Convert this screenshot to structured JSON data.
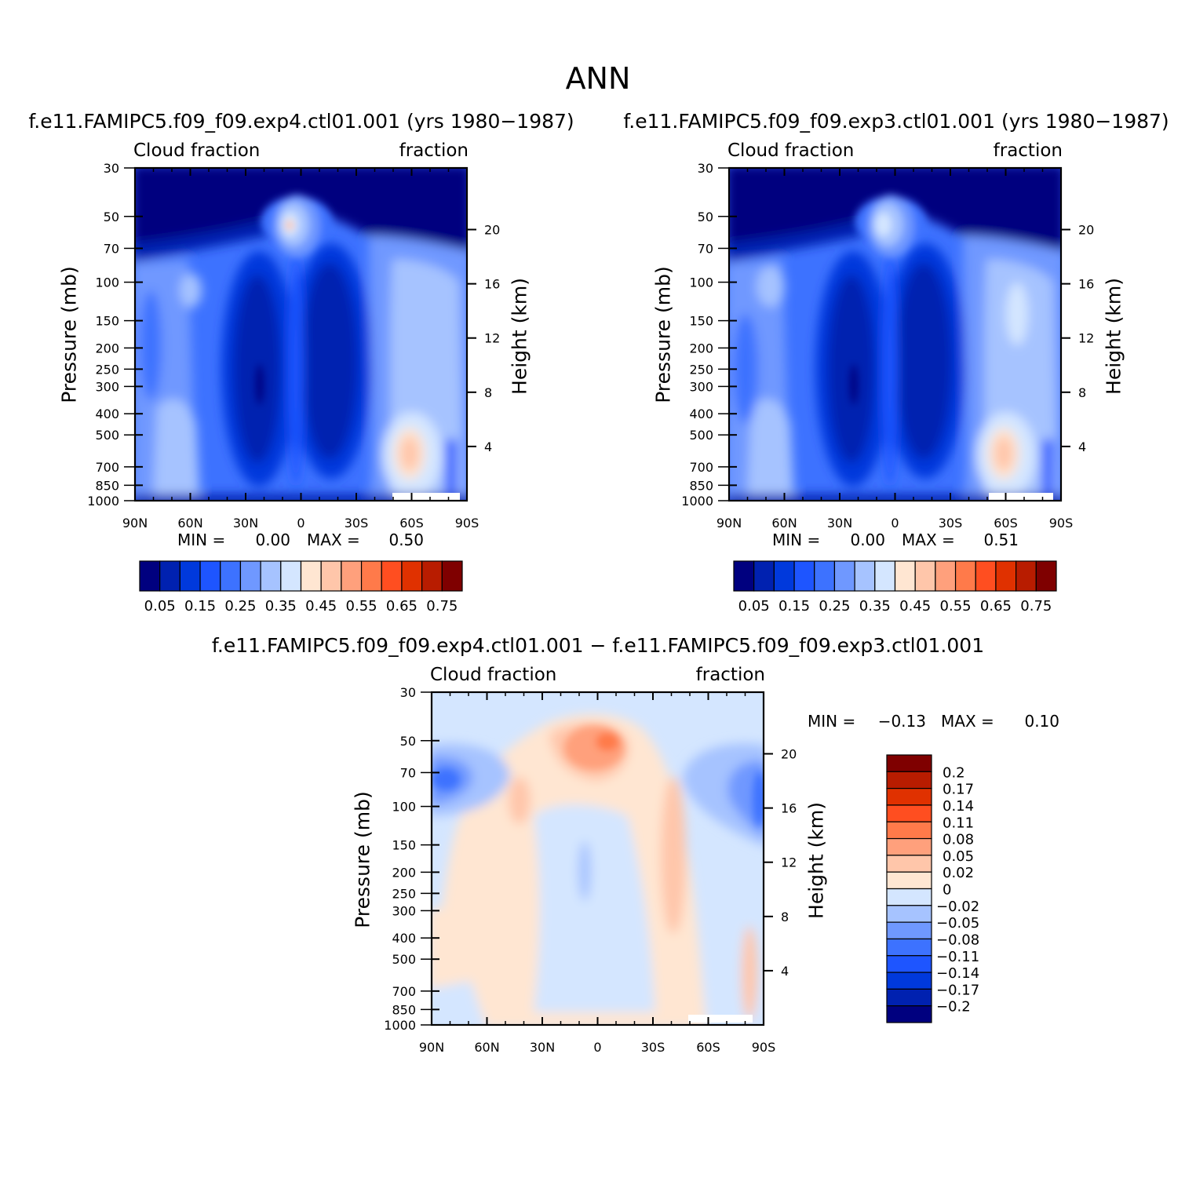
{
  "figure_title": "ANN",
  "chart_data": [
    {
      "id": "p1",
      "type": "contour",
      "title": "f.e11.FAMIPC5.f09_f09.exp4.ctl01.001 (yrs 1980−1987)",
      "left_string": "Cloud fraction",
      "right_string": "fraction",
      "ylabel": "Pressure (mb)",
      "ylabel_right": "Height (km)",
      "x_ticks": [
        "90N",
        "60N",
        "30N",
        "0",
        "30S",
        "60S",
        "90S"
      ],
      "y_ticks": [
        "30",
        "50",
        "70",
        "100",
        "150",
        "200",
        "250",
        "300",
        "400",
        "500",
        "700",
        "850",
        "1000"
      ],
      "y_ticks_right": [
        "20",
        "16",
        "12",
        "8",
        "4"
      ],
      "stats": {
        "min_label": "MIN =",
        "min": "0.00",
        "max_label": "MAX =",
        "max": "0.50"
      },
      "colorbar_labels": [
        "0.05",
        "0.15",
        "0.25",
        "0.35",
        "0.45",
        "0.55",
        "0.65",
        "0.75"
      ]
    },
    {
      "id": "p2",
      "type": "contour",
      "title": "f.e11.FAMIPC5.f09_f09.exp3.ctl01.001 (yrs 1980−1987)",
      "left_string": "Cloud fraction",
      "right_string": "fraction",
      "ylabel": "Pressure (mb)",
      "ylabel_right": "Height (km)",
      "x_ticks": [
        "90N",
        "60N",
        "30N",
        "0",
        "30S",
        "60S",
        "90S"
      ],
      "y_ticks": [
        "30",
        "50",
        "70",
        "100",
        "150",
        "200",
        "250",
        "300",
        "400",
        "500",
        "700",
        "850",
        "1000"
      ],
      "y_ticks_right": [
        "20",
        "16",
        "12",
        "8",
        "4"
      ],
      "stats": {
        "min_label": "MIN =",
        "min": "0.00",
        "max_label": "MAX =",
        "max": "0.51"
      },
      "colorbar_labels": [
        "0.05",
        "0.15",
        "0.25",
        "0.35",
        "0.45",
        "0.55",
        "0.65",
        "0.75"
      ]
    },
    {
      "id": "p3",
      "type": "contour",
      "title": "f.e11.FAMIPC5.f09_f09.exp4.ctl01.001 − f.e11.FAMIPC5.f09_f09.exp3.ctl01.001",
      "left_string": "Cloud fraction",
      "right_string": "fraction",
      "ylabel": "Pressure (mb)",
      "ylabel_right": "Height (km)",
      "x_ticks": [
        "90N",
        "60N",
        "30N",
        "0",
        "30S",
        "60S",
        "90S"
      ],
      "y_ticks": [
        "30",
        "50",
        "70",
        "100",
        "150",
        "200",
        "250",
        "300",
        "400",
        "500",
        "700",
        "850",
        "1000"
      ],
      "y_ticks_right": [
        "20",
        "16",
        "12",
        "8",
        "4"
      ],
      "stats": {
        "min_label": "MIN =",
        "min": "−0.13",
        "max_label": "MAX =",
        "max": "0.10"
      },
      "colorbar_labels": [
        "0.2",
        "0.17",
        "0.14",
        "0.11",
        "0.08",
        "0.05",
        "0.02",
        "0",
        "−0.02",
        "−0.05",
        "−0.08",
        "−0.11",
        "−0.14",
        "−0.17",
        "−0.2"
      ]
    }
  ],
  "palettes": {
    "sequential": [
      "#00007f",
      "#0021b0",
      "#0039dc",
      "#1e55ff",
      "#3d72ff",
      "#6f98ff",
      "#a6c3ff",
      "#d4e6ff",
      "#ffe6d2",
      "#ffc6aa",
      "#ffa07c",
      "#ff7a4a",
      "#ff4e20",
      "#e03100",
      "#b81c00",
      "#7f0000"
    ],
    "diverging": [
      "#7f0000",
      "#b81c00",
      "#e03100",
      "#ff4e20",
      "#ff7a4a",
      "#ffa07c",
      "#ffc6aa",
      "#ffe6d2",
      "#d4e6ff",
      "#a6c3ff",
      "#6f98ff",
      "#3d72ff",
      "#1e55ff",
      "#0039dc",
      "#0021b0",
      "#00007f"
    ]
  }
}
